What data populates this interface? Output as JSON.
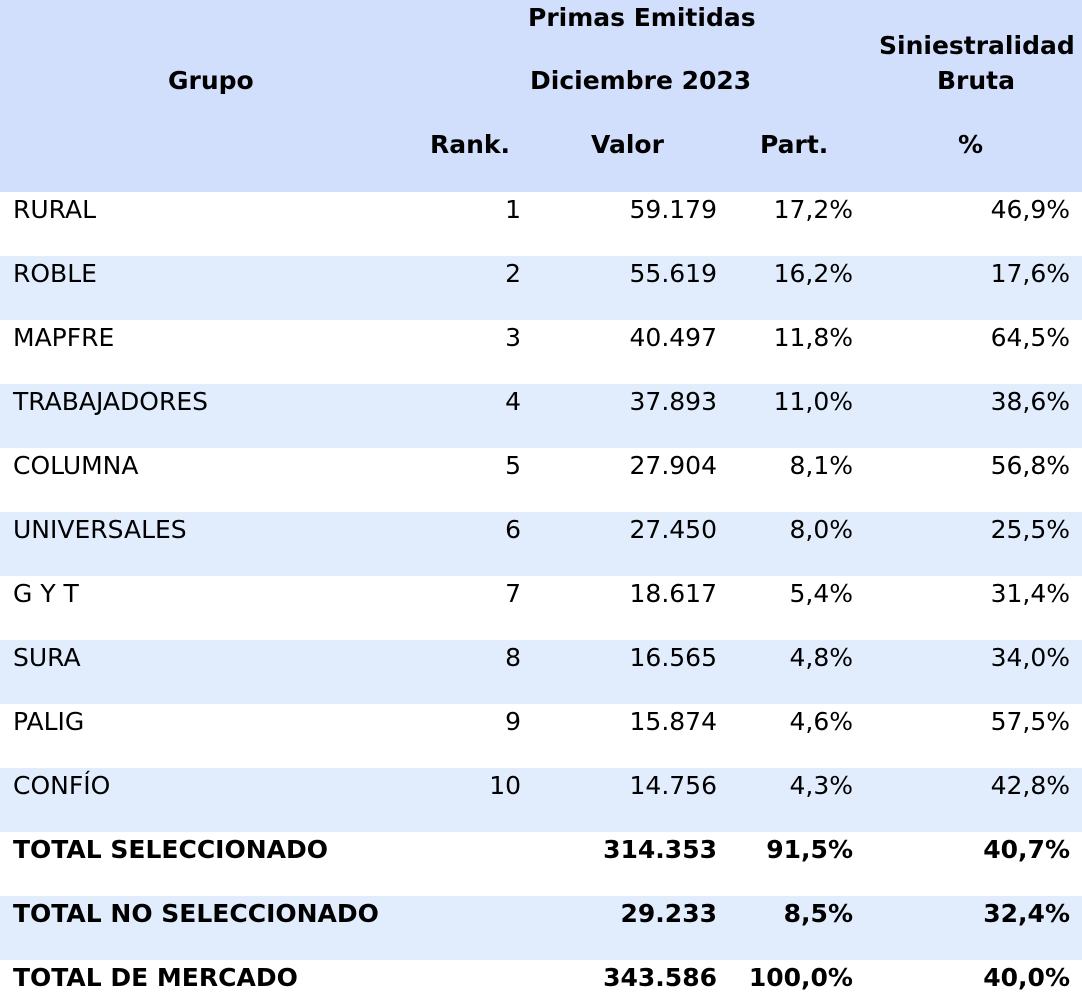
{
  "header": {
    "grupo": "Grupo",
    "primas_line1": "Primas Emitidas",
    "primas_line2": "Diciembre 2023",
    "siniestralidad_line1": "Siniestralidad",
    "siniestralidad_line2": "Bruta",
    "rank": "Rank.",
    "valor": "Valor",
    "part": "Part.",
    "pct": "%"
  },
  "rows": [
    {
      "grupo": "RURAL",
      "rank": "1",
      "valor": "59.179",
      "part": "17,2%",
      "sin": "46,9%"
    },
    {
      "grupo": "ROBLE",
      "rank": "2",
      "valor": "55.619",
      "part": "16,2%",
      "sin": "17,6%"
    },
    {
      "grupo": "MAPFRE",
      "rank": "3",
      "valor": "40.497",
      "part": "11,8%",
      "sin": "64,5%"
    },
    {
      "grupo": "TRABAJADORES",
      "rank": "4",
      "valor": "37.893",
      "part": "11,0%",
      "sin": "38,6%"
    },
    {
      "grupo": "COLUMNA",
      "rank": "5",
      "valor": "27.904",
      "part": "8,1%",
      "sin": "56,8%"
    },
    {
      "grupo": "UNIVERSALES",
      "rank": "6",
      "valor": "27.450",
      "part": "8,0%",
      "sin": "25,5%"
    },
    {
      "grupo": "G Y T",
      "rank": "7",
      "valor": "18.617",
      "part": "5,4%",
      "sin": "31,4%"
    },
    {
      "grupo": "SURA",
      "rank": "8",
      "valor": "16.565",
      "part": "4,8%",
      "sin": "34,0%"
    },
    {
      "grupo": "PALIG",
      "rank": "9",
      "valor": "15.874",
      "part": "4,6%",
      "sin": "57,5%"
    },
    {
      "grupo": "CONFÍO",
      "rank": "10",
      "valor": "14.756",
      "part": "4,3%",
      "sin": "42,8%"
    }
  ],
  "totals": [
    {
      "grupo": "TOTAL SELECCIONADO",
      "valor": "314.353",
      "part": "91,5%",
      "sin": "40,7%"
    },
    {
      "grupo": "TOTAL NO SELECCIONADO",
      "valor": "29.233",
      "part": "8,5%",
      "sin": "32,4%"
    },
    {
      "grupo": "TOTAL DE MERCADO",
      "valor": "343.586",
      "part": "100,0%",
      "sin": "40,0%"
    }
  ],
  "colors": {
    "header_bg": "#d2dffc",
    "alt_row_bg": "#e1ecfd",
    "row_bg": "#ffffff"
  }
}
